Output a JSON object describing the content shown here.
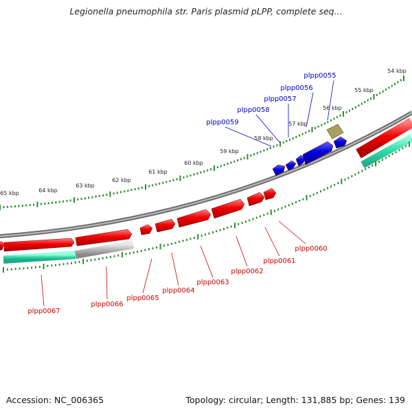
{
  "title": "Legionella pneumophila str. Paris plasmid pLPP, complete seq...",
  "colors": {
    "forward_gene": "#ee0000",
    "reverse_gene": "#0000dd",
    "olive_gene": "#a8a060",
    "backbone": "#8a8a8a",
    "green_band": "#33ddaa",
    "gray_band": "#b8b8b8",
    "tick": "#2a8a2a",
    "forward_label": "#cc0000",
    "reverse_label": "#0000cc"
  },
  "ruler_top_labels": [
    "54 kbp",
    "55 kbp",
    "56 kbp",
    "57 kbp",
    "58 kbp",
    "59 kbp",
    "60 kbp",
    "61 kbp",
    "62 kbp",
    "63 kbp",
    "64 kbp",
    "65 kbp"
  ],
  "reverse_strand_labels": [
    "plpp0055",
    "plpp0056",
    "plpp0057",
    "plpp0058",
    "plpp0059"
  ],
  "forward_strand_labels": [
    "plpp0060",
    "plpp0061",
    "plpp0062",
    "plpp0063",
    "plpp0064",
    "plpp0065",
    "plpp0066",
    "plpp0067"
  ],
  "footer": {
    "accession": "Accession: NC_006365",
    "topology": "Topology: circular; Length: 131,885 bp; Genes: 139"
  }
}
